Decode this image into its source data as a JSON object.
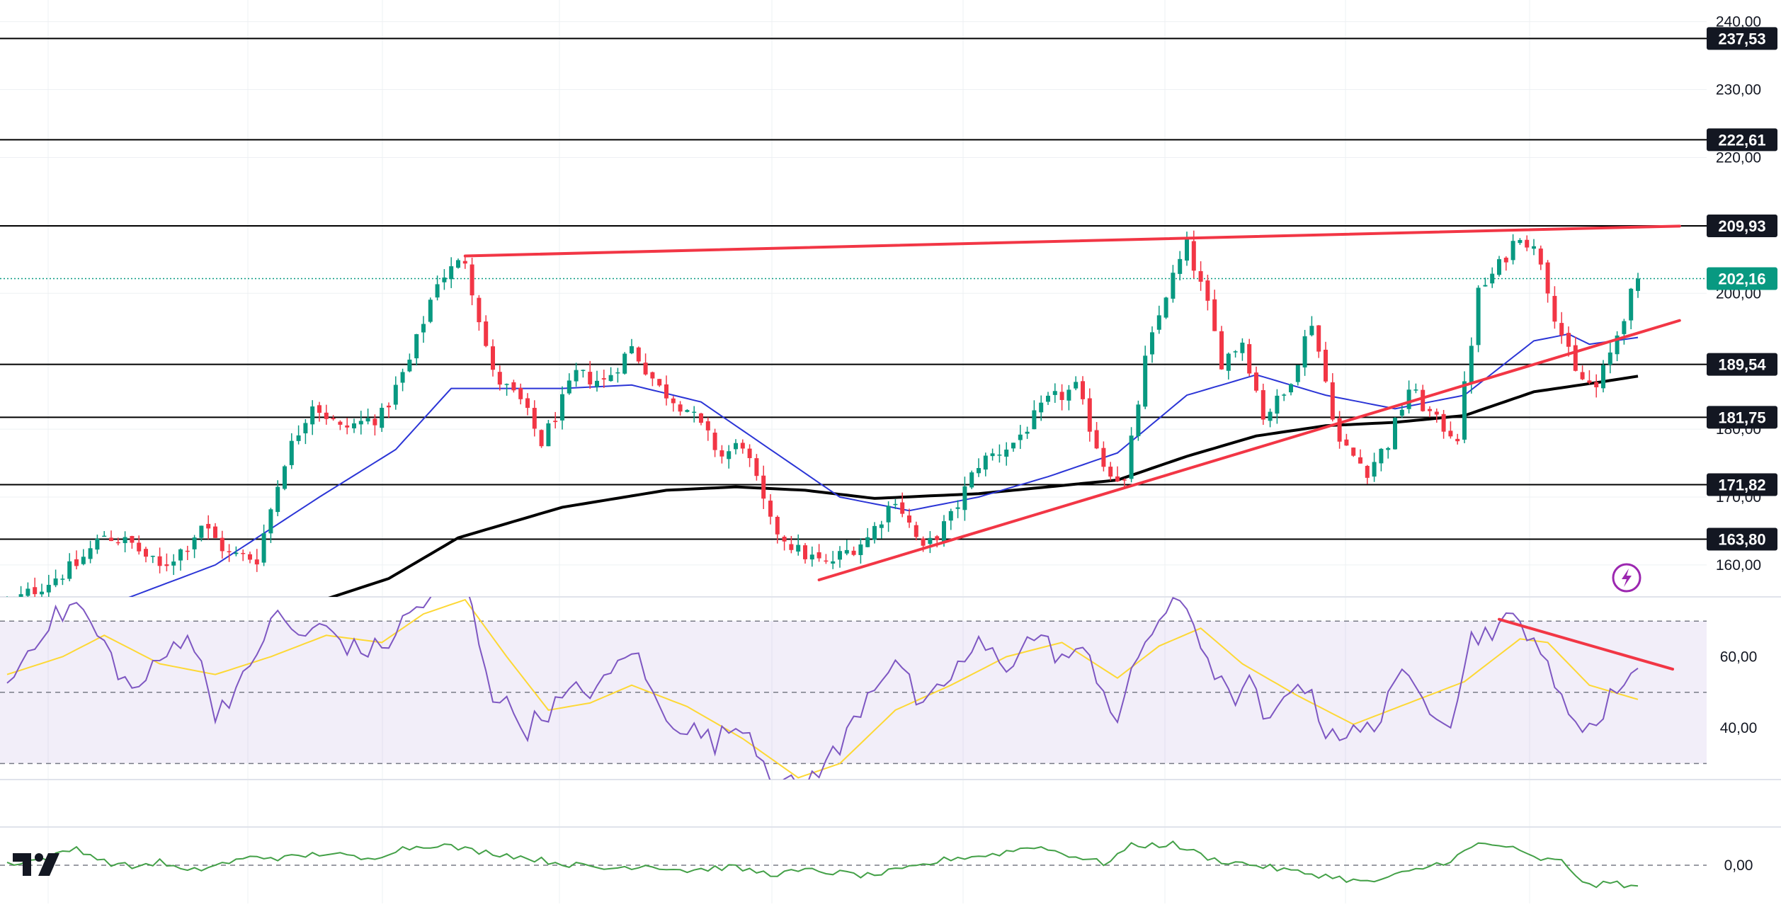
{
  "colors": {
    "up": "#089981",
    "down": "#f23645",
    "sma_fast": "#2b35d6",
    "sma_slow": "#000000",
    "trend_line": "#f23645",
    "hline": "#000000",
    "rsi": "#7e57c2",
    "rsi_ma": "#fdd835",
    "rsi_band": "#7e57c2",
    "osc": "#43a047",
    "last_price": "#089981",
    "logo_mark": "#131722",
    "alert": "#9c27b0"
  },
  "chart_data": [
    {
      "type": "candlestick",
      "title": "",
      "ylim": [
        155.3,
        240.9
      ],
      "y_ticks": [
        "240,00",
        "230,00",
        "220,00",
        "200,00",
        "180,00",
        "170,00",
        "160,00"
      ],
      "y_tick_values": [
        240,
        230,
        220,
        200,
        180,
        170,
        160
      ],
      "horizontal_levels": [
        {
          "label": "237,53",
          "value": 237.53
        },
        {
          "label": "222,61",
          "value": 222.61
        },
        {
          "label": "209,93",
          "value": 209.93
        },
        {
          "label": "189,54",
          "value": 189.54
        },
        {
          "label": "181,75",
          "value": 181.75
        },
        {
          "label": "171,82",
          "value": 171.82
        },
        {
          "label": "163,80",
          "value": 163.8
        }
      ],
      "last_price": {
        "label": "202,16",
        "value": 202.16
      },
      "num_bars": 236,
      "anchors": [
        {
          "bar": 0,
          "close": 154.0
        },
        {
          "bar": 10,
          "close": 160.0
        },
        {
          "bar": 14,
          "close": 164.5
        },
        {
          "bar": 18,
          "close": 163.0
        },
        {
          "bar": 22,
          "close": 159.5
        },
        {
          "bar": 26,
          "close": 163.0
        },
        {
          "bar": 28,
          "close": 166.0
        },
        {
          "bar": 32,
          "close": 161.5
        },
        {
          "bar": 36,
          "close": 161.0
        },
        {
          "bar": 40,
          "close": 175.5
        },
        {
          "bar": 44,
          "close": 184.0
        },
        {
          "bar": 48,
          "close": 180.0
        },
        {
          "bar": 54,
          "close": 182.0
        },
        {
          "bar": 58,
          "close": 190.0
        },
        {
          "bar": 62,
          "close": 202.0
        },
        {
          "bar": 66,
          "close": 205.0
        },
        {
          "bar": 70,
          "close": 188.0
        },
        {
          "bar": 74,
          "close": 184.0
        },
        {
          "bar": 77,
          "close": 178.0
        },
        {
          "bar": 82,
          "close": 188.0
        },
        {
          "bar": 86,
          "close": 187.0
        },
        {
          "bar": 90,
          "close": 192.0
        },
        {
          "bar": 94,
          "close": 186.0
        },
        {
          "bar": 98,
          "close": 183.0
        },
        {
          "bar": 103,
          "close": 176.0
        },
        {
          "bar": 106,
          "close": 178.0
        },
        {
          "bar": 110,
          "close": 166.0
        },
        {
          "bar": 114,
          "close": 162.0
        },
        {
          "bar": 118,
          "close": 160.0
        },
        {
          "bar": 124,
          "close": 164.0
        },
        {
          "bar": 128,
          "close": 170.0
        },
        {
          "bar": 132,
          "close": 162.0
        },
        {
          "bar": 136,
          "close": 167.0
        },
        {
          "bar": 140,
          "close": 175.0
        },
        {
          "bar": 145,
          "close": 178.0
        },
        {
          "bar": 150,
          "close": 184.0
        },
        {
          "bar": 154,
          "close": 186.0
        },
        {
          "bar": 158,
          "close": 175.0
        },
        {
          "bar": 161,
          "close": 172.0
        },
        {
          "bar": 164,
          "close": 190.0
        },
        {
          "bar": 167,
          "close": 200.0
        },
        {
          "bar": 170,
          "close": 207.0
        },
        {
          "bar": 173,
          "close": 198.0
        },
        {
          "bar": 175,
          "close": 190.0
        },
        {
          "bar": 178,
          "close": 193.0
        },
        {
          "bar": 181,
          "close": 182.0
        },
        {
          "bar": 184,
          "close": 185.0
        },
        {
          "bar": 188,
          "close": 196.0
        },
        {
          "bar": 192,
          "close": 178.0
        },
        {
          "bar": 196,
          "close": 174.0
        },
        {
          "bar": 199,
          "close": 178.0
        },
        {
          "bar": 202,
          "close": 186.0
        },
        {
          "bar": 206,
          "close": 181.0
        },
        {
          "bar": 209,
          "close": 179.0
        },
        {
          "bar": 212,
          "close": 200.0
        },
        {
          "bar": 215,
          "close": 204.0
        },
        {
          "bar": 218,
          "close": 209.0
        },
        {
          "bar": 221,
          "close": 205.0
        },
        {
          "bar": 223,
          "close": 197.0
        },
        {
          "bar": 226,
          "close": 188.0
        },
        {
          "bar": 229,
          "close": 186.0
        },
        {
          "bar": 231,
          "close": 191.0
        },
        {
          "bar": 233,
          "close": 197.0
        },
        {
          "bar": 235,
          "close": 202.16
        }
      ],
      "sma_fast_anchors": [
        {
          "bar": 17,
          "value": 155.0
        },
        {
          "bar": 30,
          "value": 160.0
        },
        {
          "bar": 45,
          "value": 170.0
        },
        {
          "bar": 56,
          "value": 177.0
        },
        {
          "bar": 64,
          "value": 186.0
        },
        {
          "bar": 70,
          "value": 186.0
        },
        {
          "bar": 80,
          "value": 186.0
        },
        {
          "bar": 90,
          "value": 186.5
        },
        {
          "bar": 100,
          "value": 184.0
        },
        {
          "bar": 110,
          "value": 177.0
        },
        {
          "bar": 120,
          "value": 170.0
        },
        {
          "bar": 130,
          "value": 168.0
        },
        {
          "bar": 140,
          "value": 170.0
        },
        {
          "bar": 150,
          "value": 173.0
        },
        {
          "bar": 160,
          "value": 176.5
        },
        {
          "bar": 170,
          "value": 185.0
        },
        {
          "bar": 180,
          "value": 188.0
        },
        {
          "bar": 190,
          "value": 185.0
        },
        {
          "bar": 200,
          "value": 183.0
        },
        {
          "bar": 210,
          "value": 185.0
        },
        {
          "bar": 220,
          "value": 193.0
        },
        {
          "bar": 225,
          "value": 194.0
        },
        {
          "bar": 228,
          "value": 192.5
        },
        {
          "bar": 235,
          "value": 193.5
        }
      ],
      "sma_slow_anchors": [
        {
          "bar": 40,
          "value": 153.0
        },
        {
          "bar": 55,
          "value": 158.0
        },
        {
          "bar": 65,
          "value": 164.0
        },
        {
          "bar": 80,
          "value": 168.5
        },
        {
          "bar": 95,
          "value": 171.0
        },
        {
          "bar": 105,
          "value": 171.5
        },
        {
          "bar": 115,
          "value": 171.0
        },
        {
          "bar": 125,
          "value": 169.8
        },
        {
          "bar": 140,
          "value": 170.5
        },
        {
          "bar": 160,
          "value": 172.5
        },
        {
          "bar": 170,
          "value": 176.0
        },
        {
          "bar": 180,
          "value": 179.0
        },
        {
          "bar": 190,
          "value": 180.5
        },
        {
          "bar": 200,
          "value": 181.0
        },
        {
          "bar": 210,
          "value": 182.0
        },
        {
          "bar": 220,
          "value": 185.5
        },
        {
          "bar": 230,
          "value": 187.0
        },
        {
          "bar": 235,
          "value": 187.8
        }
      ],
      "trend_lines": [
        {
          "from": {
            "bar": 66,
            "value": 205.5
          },
          "to": {
            "bar": 241,
            "value": 209.9
          }
        },
        {
          "from": {
            "bar": 117,
            "value": 157.8
          },
          "to": {
            "bar": 241,
            "value": 196.0
          }
        }
      ]
    },
    {
      "type": "line",
      "title": "",
      "ylim": [
        25.5,
        76.8
      ],
      "y_ticks": [
        "60,00",
        "40,00"
      ],
      "y_tick_values": [
        60,
        40
      ],
      "bands": [
        70,
        50,
        30
      ],
      "rsi_anchors": [
        {
          "bar": 0,
          "value": 52
        },
        {
          "bar": 5,
          "value": 68
        },
        {
          "bar": 10,
          "value": 75
        },
        {
          "bar": 15,
          "value": 60
        },
        {
          "bar": 18,
          "value": 50
        },
        {
          "bar": 22,
          "value": 58
        },
        {
          "bar": 26,
          "value": 68
        },
        {
          "bar": 30,
          "value": 45
        },
        {
          "bar": 35,
          "value": 55
        },
        {
          "bar": 38,
          "value": 72
        },
        {
          "bar": 42,
          "value": 66
        },
        {
          "bar": 46,
          "value": 68
        },
        {
          "bar": 50,
          "value": 62
        },
        {
          "bar": 54,
          "value": 62
        },
        {
          "bar": 58,
          "value": 72
        },
        {
          "bar": 62,
          "value": 78
        },
        {
          "bar": 66,
          "value": 80
        },
        {
          "bar": 70,
          "value": 50
        },
        {
          "bar": 75,
          "value": 40
        },
        {
          "bar": 78,
          "value": 45
        },
        {
          "bar": 82,
          "value": 50
        },
        {
          "bar": 86,
          "value": 52
        },
        {
          "bar": 90,
          "value": 63
        },
        {
          "bar": 94,
          "value": 45
        },
        {
          "bar": 98,
          "value": 40
        },
        {
          "bar": 102,
          "value": 36
        },
        {
          "bar": 106,
          "value": 42
        },
        {
          "bar": 110,
          "value": 28
        },
        {
          "bar": 114,
          "value": 22
        },
        {
          "bar": 117,
          "value": 29
        },
        {
          "bar": 120,
          "value": 34
        },
        {
          "bar": 124,
          "value": 50
        },
        {
          "bar": 128,
          "value": 60
        },
        {
          "bar": 132,
          "value": 44
        },
        {
          "bar": 136,
          "value": 55
        },
        {
          "bar": 140,
          "value": 63
        },
        {
          "bar": 144,
          "value": 58
        },
        {
          "bar": 148,
          "value": 66
        },
        {
          "bar": 152,
          "value": 60
        },
        {
          "bar": 156,
          "value": 60
        },
        {
          "bar": 160,
          "value": 42
        },
        {
          "bar": 164,
          "value": 65
        },
        {
          "bar": 167,
          "value": 73
        },
        {
          "bar": 170,
          "value": 74
        },
        {
          "bar": 173,
          "value": 60
        },
        {
          "bar": 176,
          "value": 48
        },
        {
          "bar": 179,
          "value": 52
        },
        {
          "bar": 182,
          "value": 40
        },
        {
          "bar": 186,
          "value": 55
        },
        {
          "bar": 190,
          "value": 40
        },
        {
          "bar": 194,
          "value": 38
        },
        {
          "bar": 197,
          "value": 40
        },
        {
          "bar": 200,
          "value": 55
        },
        {
          "bar": 204,
          "value": 48
        },
        {
          "bar": 208,
          "value": 43
        },
        {
          "bar": 211,
          "value": 65
        },
        {
          "bar": 214,
          "value": 68
        },
        {
          "bar": 217,
          "value": 70
        },
        {
          "bar": 220,
          "value": 67
        },
        {
          "bar": 223,
          "value": 50
        },
        {
          "bar": 226,
          "value": 43
        },
        {
          "bar": 229,
          "value": 40
        },
        {
          "bar": 232,
          "value": 52
        },
        {
          "bar": 235,
          "value": 57
        }
      ],
      "rsi_ma_anchors": [
        {
          "bar": 0,
          "value": 55
        },
        {
          "bar": 8,
          "value": 60
        },
        {
          "bar": 14,
          "value": 66
        },
        {
          "bar": 22,
          "value": 58
        },
        {
          "bar": 30,
          "value": 55
        },
        {
          "bar": 38,
          "value": 60
        },
        {
          "bar": 46,
          "value": 66
        },
        {
          "bar": 54,
          "value": 64
        },
        {
          "bar": 60,
          "value": 72
        },
        {
          "bar": 66,
          "value": 76
        },
        {
          "bar": 72,
          "value": 60
        },
        {
          "bar": 78,
          "value": 45
        },
        {
          "bar": 84,
          "value": 47
        },
        {
          "bar": 90,
          "value": 52
        },
        {
          "bar": 98,
          "value": 46
        },
        {
          "bar": 106,
          "value": 37
        },
        {
          "bar": 114,
          "value": 26
        },
        {
          "bar": 120,
          "value": 30
        },
        {
          "bar": 128,
          "value": 45
        },
        {
          "bar": 136,
          "value": 52
        },
        {
          "bar": 144,
          "value": 60
        },
        {
          "bar": 152,
          "value": 64
        },
        {
          "bar": 160,
          "value": 54
        },
        {
          "bar": 166,
          "value": 63
        },
        {
          "bar": 172,
          "value": 68
        },
        {
          "bar": 178,
          "value": 58
        },
        {
          "bar": 186,
          "value": 49
        },
        {
          "bar": 194,
          "value": 41
        },
        {
          "bar": 202,
          "value": 47
        },
        {
          "bar": 210,
          "value": 53
        },
        {
          "bar": 218,
          "value": 65
        },
        {
          "bar": 222,
          "value": 64
        },
        {
          "bar": 228,
          "value": 52
        },
        {
          "bar": 235,
          "value": 48
        }
      ],
      "trend_lines": [
        {
          "from": {
            "bar": 215,
            "value": 70.5
          },
          "to": {
            "bar": 240,
            "value": 56.5
          }
        }
      ]
    },
    {
      "type": "line",
      "title": "",
      "y_ticks": [
        "0,00"
      ],
      "y_tick_values": [
        0
      ],
      "ylim": [
        -1.05,
        1.05
      ],
      "osc_anchors": [
        {
          "bar": 0,
          "value": 0.05
        },
        {
          "bar": 6,
          "value": 0.2
        },
        {
          "bar": 10,
          "value": 0.5
        },
        {
          "bar": 14,
          "value": 0.1
        },
        {
          "bar": 18,
          "value": -0.05
        },
        {
          "bar": 22,
          "value": 0.1
        },
        {
          "bar": 26,
          "value": -0.2
        },
        {
          "bar": 30,
          "value": 0.0
        },
        {
          "bar": 36,
          "value": 0.25
        },
        {
          "bar": 40,
          "value": 0.2
        },
        {
          "bar": 46,
          "value": 0.35
        },
        {
          "bar": 52,
          "value": 0.15
        },
        {
          "bar": 56,
          "value": 0.45
        },
        {
          "bar": 62,
          "value": 0.6
        },
        {
          "bar": 66,
          "value": 0.45
        },
        {
          "bar": 72,
          "value": 0.3
        },
        {
          "bar": 80,
          "value": 0.05
        },
        {
          "bar": 86,
          "value": -0.1
        },
        {
          "bar": 92,
          "value": 0.0
        },
        {
          "bar": 98,
          "value": -0.15
        },
        {
          "bar": 104,
          "value": -0.05
        },
        {
          "bar": 110,
          "value": -0.25
        },
        {
          "bar": 116,
          "value": -0.15
        },
        {
          "bar": 124,
          "value": -0.3
        },
        {
          "bar": 130,
          "value": -0.1
        },
        {
          "bar": 136,
          "value": 0.2
        },
        {
          "bar": 142,
          "value": 0.3
        },
        {
          "bar": 148,
          "value": 0.55
        },
        {
          "bar": 152,
          "value": 0.35
        },
        {
          "bar": 158,
          "value": 0.05
        },
        {
          "bar": 162,
          "value": 0.55
        },
        {
          "bar": 168,
          "value": 0.6
        },
        {
          "bar": 174,
          "value": 0.15
        },
        {
          "bar": 180,
          "value": 0.0
        },
        {
          "bar": 186,
          "value": -0.2
        },
        {
          "bar": 190,
          "value": -0.3
        },
        {
          "bar": 196,
          "value": -0.5
        },
        {
          "bar": 202,
          "value": -0.2
        },
        {
          "bar": 208,
          "value": 0.15
        },
        {
          "bar": 212,
          "value": 0.6
        },
        {
          "bar": 216,
          "value": 0.55
        },
        {
          "bar": 220,
          "value": 0.2
        },
        {
          "bar": 224,
          "value": 0.1
        },
        {
          "bar": 228,
          "value": -0.6
        },
        {
          "bar": 232,
          "value": -0.5
        },
        {
          "bar": 235,
          "value": -0.65
        }
      ]
    }
  ]
}
